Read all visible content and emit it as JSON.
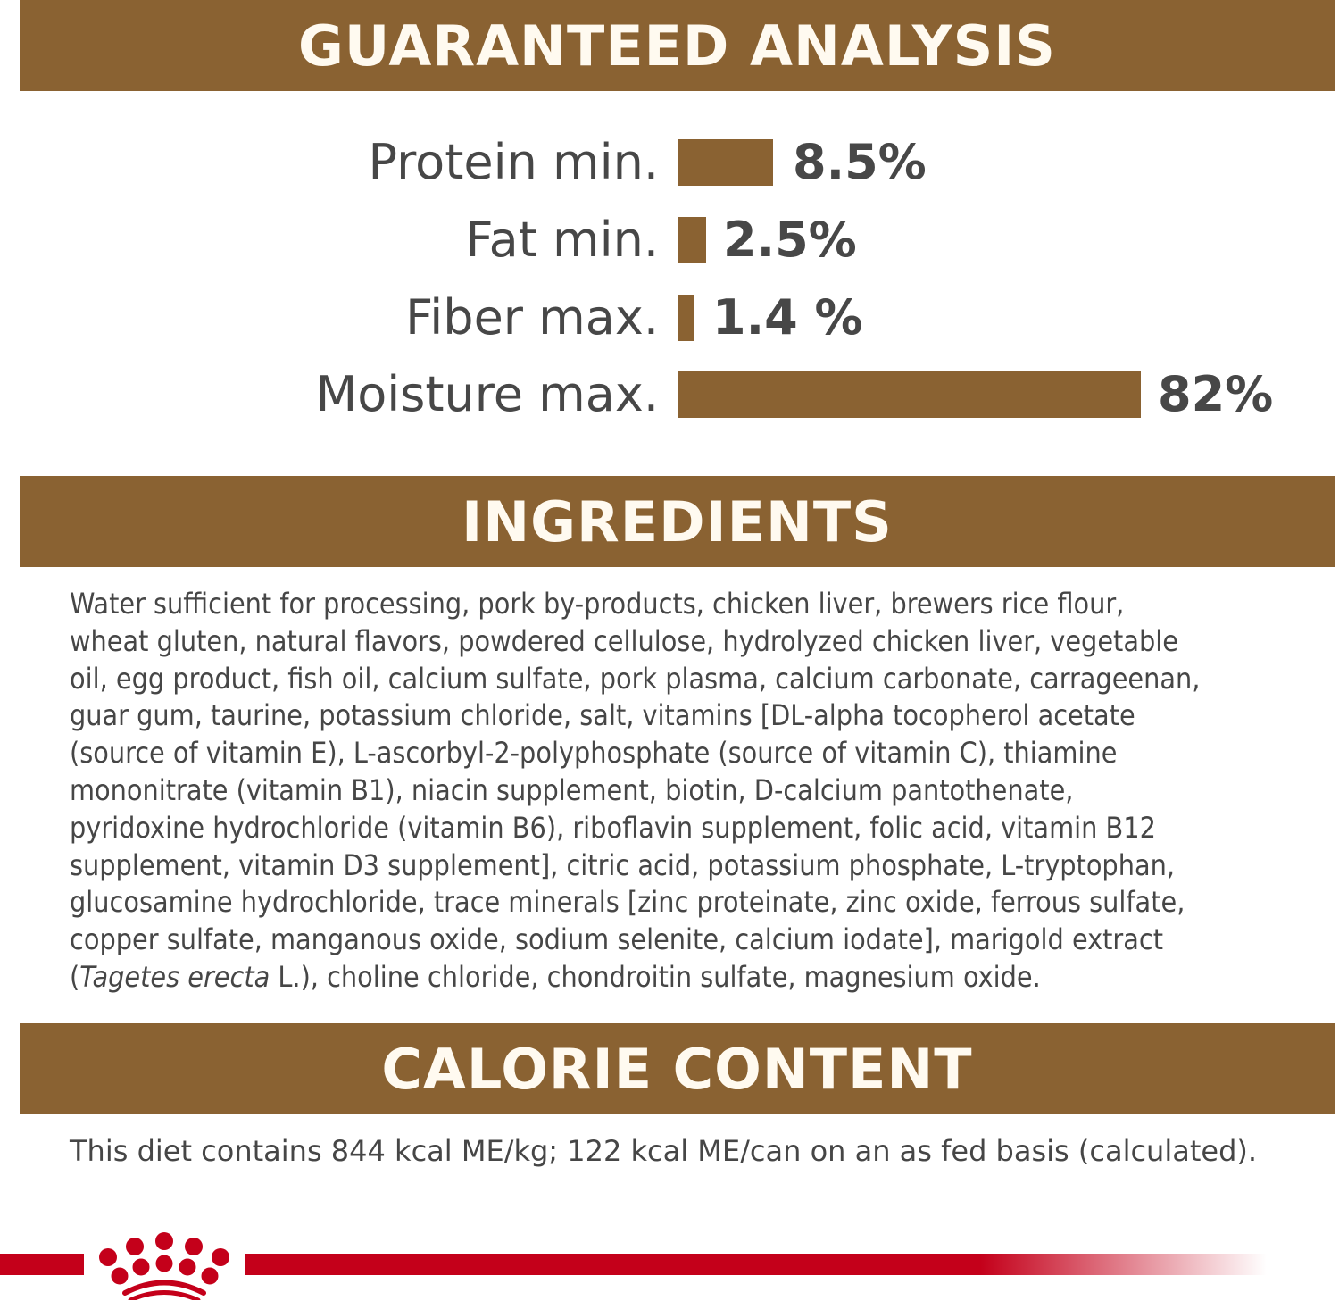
{
  "sections": {
    "analysis_title": "GUARANTEED ANALYSIS",
    "ingredients_title": "INGREDIENTS",
    "calorie_title": "CALORIE CONTENT"
  },
  "analysis": [
    {
      "label": "Protein min.",
      "value": "8.5%",
      "percent": 8.5
    },
    {
      "label": "Fat min.",
      "value": "2.5%",
      "percent": 2.5
    },
    {
      "label": "Fiber max.",
      "value": "1.4 %",
      "percent": 1.4
    },
    {
      "label": "Moisture max.",
      "value": "82%",
      "percent": 82
    }
  ],
  "ingredients": {
    "lines": [
      "Water sufficient for processing, pork by-products, chicken liver, brewers rice flour,",
      "wheat gluten, natural flavors, powdered cellulose, hydrolyzed chicken liver, vegetable",
      "oil, egg product, fish oil, calcium sulfate, pork plasma, calcium carbonate, carrageenan,",
      "guar gum, taurine, potassium chloride, salt, vitamins [DL-alpha tocopherol acetate",
      "(source of vitamin E), L-ascorbyl-2-polyphosphate (source of vitamin C), thiamine",
      "mononitrate (vitamin B1), niacin supplement, biotin, D-calcium pantothenate,",
      "pyridoxine hydrochloride (vitamin B6), riboflavin supplement, folic acid, vitamin B12",
      "supplement, vitamin D3 supplement], citric acid, potassium phosphate, L-tryptophan,",
      "glucosamine hydrochloride, trace minerals [zinc proteinate, zinc oxide, ferrous sulfate,",
      "copper sulfate, manganous oxide, sodium selenite, calcium iodate], marigold extract"
    ],
    "last_line_open": "(",
    "last_line_italic": "Tagetes erecta",
    "last_line_rest": " L.), choline chloride, chondroitin sulfate, magnesium oxide."
  },
  "calorie_text": "This diet contains 844 kcal ME/kg; 122 kcal ME/can on an as fed basis (calculated).",
  "colors": {
    "band": "#8a6232",
    "text": "#464646",
    "brand_red": "#c4001a"
  },
  "logo": {
    "name": "crown-logo-icon"
  }
}
